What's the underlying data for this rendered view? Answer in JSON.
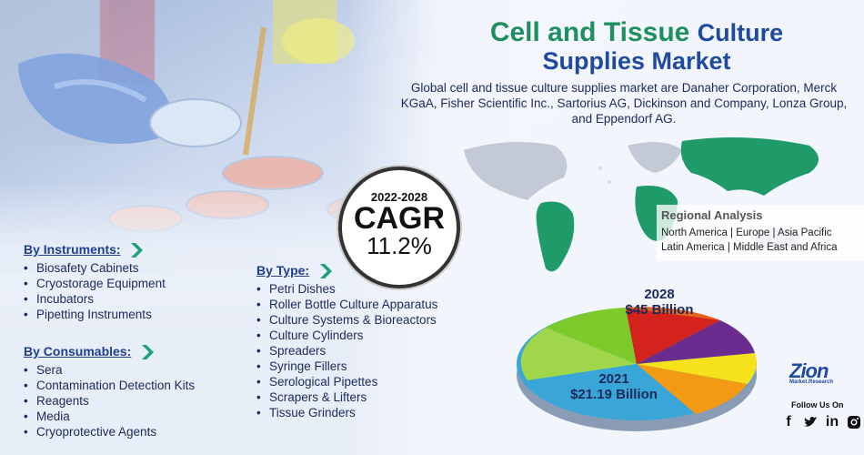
{
  "title": {
    "part1": "Cell and Tissue",
    "part2": "Culture",
    "line2": "Supplies Market"
  },
  "description": "Global cell and tissue culture supplies market are Danaher Corporation, Merck KGaA, Fisher Scientific Inc., Sartorius AG, Dickinson and Company, Lonza Group, and Eppendorf AG.",
  "cagr": {
    "years": "2022-2028",
    "label": "CAGR",
    "value": "11.2%"
  },
  "regional": {
    "title": "Regional Analysis",
    "line1": "North America | Europe | Asia Pacific",
    "line2": "Latin America | Middle East and Africa"
  },
  "instruments": {
    "heading": "By  Instruments:",
    "items": [
      "Biosafety Cabinets",
      "Cryostorage Equipment",
      "Incubators",
      "Pipetting Instruments"
    ]
  },
  "consumables": {
    "heading": "By Consumables:",
    "items": [
      "Sera",
      "Contamination Detection Kits",
      "Reagents",
      "Media",
      "Cryoprotective Agents"
    ]
  },
  "types": {
    "heading": "By Type:",
    "items": [
      "Petri Dishes",
      "Roller Bottle Culture Apparatus",
      "Culture Systems & Bioreactors",
      "Culture Cylinders",
      "Spreaders",
      "Syringe Fillers",
      "Serological Pipettes",
      "Scrapers & Lifters",
      "Tissue Grinders"
    ]
  },
  "market_size": {
    "y2028_year": "2028",
    "y2028_value": "$45 Billion",
    "y2021_year": "2021",
    "y2021_value": "$21.19 Billion"
  },
  "brand": {
    "logo_main": "Zion",
    "logo_sub": "Market.Research",
    "follow": "Follow Us On",
    "social_icons": [
      "facebook-icon",
      "twitter-icon",
      "linkedin-icon",
      "instagram-icon"
    ]
  },
  "colors": {
    "title_green": "#1f8f5f",
    "title_blue": "#1f4a9e",
    "pie_red": "#d4231c",
    "pie_orange": "#f39a14",
    "pie_yellow": "#f6e21a",
    "pie_purple": "#6a2d8f",
    "pie_green": "#7ccb2b",
    "pie_blue": "#3aa6d8"
  }
}
